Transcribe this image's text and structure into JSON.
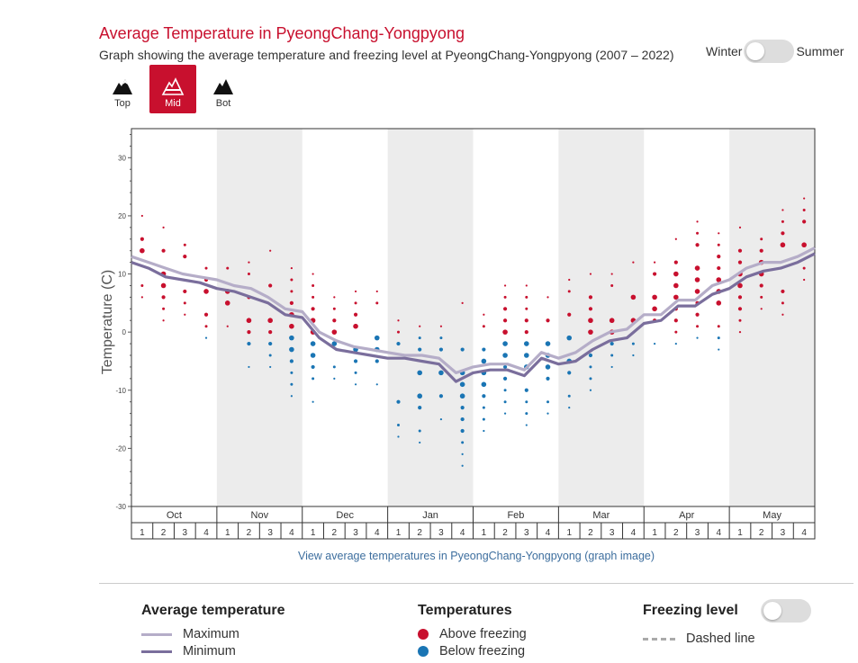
{
  "header": {
    "title": "Average Temperature in PyeongChang-Yongpyong",
    "subtitle": "Graph showing the average temperature and freezing level at PyeongChang-Yongpyong (2007 – 2022)"
  },
  "season_toggle": {
    "left_label": "Winter",
    "right_label": "Summer"
  },
  "mountain_buttons": [
    {
      "label": "Top",
      "active": false
    },
    {
      "label": "Mid",
      "active": true
    },
    {
      "label": "Bot",
      "active": false
    }
  ],
  "link_text": "View average temperatures in PyeongChang-Yongpyong (graph image)",
  "legend": {
    "avg_title": "Average temperature",
    "max_label": "Maximum",
    "min_label": "Minimum",
    "temps_title": "Temperatures",
    "above_label": "Above freezing",
    "below_label": "Below freezing",
    "freeze_title": "Freezing level",
    "dashed_label": "Dashed line"
  },
  "colors": {
    "accent": "#c8102e",
    "above": "#c8102e",
    "below": "#1a75b4",
    "max_line": "#b5adc8",
    "min_line": "#7a6e9c",
    "shade": "#ececec"
  },
  "chart_data": {
    "type": "line",
    "title": "Average Temperature in PyeongChang-Yongpyong",
    "ylabel": "Temperature (C)",
    "xlabel": "",
    "ylim": [
      -30,
      35
    ],
    "yticks": [
      -30,
      -20,
      -10,
      0,
      10,
      20,
      30
    ],
    "months": [
      "Oct",
      "Nov",
      "Dec",
      "Jan",
      "Feb",
      "Mar",
      "Apr",
      "May"
    ],
    "weeks": [
      "1",
      "2",
      "3",
      "4"
    ],
    "series": [
      {
        "name": "Maximum",
        "values": [
          13,
          12,
          11,
          10,
          9.5,
          9,
          8,
          7.5,
          6,
          4,
          3.5,
          0,
          -1.5,
          -2.5,
          -3,
          -3.5,
          -4,
          -4,
          -4.5,
          -7,
          -6,
          -5.5,
          -5.5,
          -6.5,
          -3.5,
          -4.5,
          -3.5,
          -1.5,
          0,
          0.5,
          3,
          3,
          5.5,
          5.5,
          8,
          9,
          11,
          12,
          12,
          13,
          14.5
        ]
      },
      {
        "name": "Minimum",
        "values": [
          12,
          11,
          9.5,
          9,
          8.5,
          7.5,
          7,
          6,
          5,
          3,
          2.5,
          -1,
          -3,
          -3.5,
          -4,
          -4.5,
          -4.5,
          -5,
          -5.5,
          -8.5,
          -7,
          -6.5,
          -6.5,
          -7.5,
          -4.5,
          -5.5,
          -5,
          -3,
          -1.5,
          -1,
          1.5,
          2,
          4.5,
          4.5,
          6.5,
          7.5,
          9.5,
          10.5,
          11,
          12,
          13.5
        ]
      }
    ],
    "point_ranges": [
      [
        6,
        20
      ],
      [
        2,
        18
      ],
      [
        3,
        16
      ],
      [
        -1,
        12
      ],
      [
        1,
        12
      ],
      [
        -6,
        12
      ],
      [
        -6,
        14
      ],
      [
        -11,
        11
      ],
      [
        -12,
        10
      ],
      [
        -8,
        6
      ],
      [
        -9,
        7
      ],
      [
        -9,
        8
      ],
      [
        -18,
        3
      ],
      [
        -19,
        2
      ],
      [
        -15,
        2
      ],
      [
        -23,
        6
      ],
      [
        -17,
        4
      ],
      [
        -14,
        9
      ],
      [
        -16,
        8
      ],
      [
        -14,
        7
      ],
      [
        -13,
        9
      ],
      [
        -10,
        11
      ],
      [
        -6,
        11
      ],
      [
        -4,
        12
      ],
      [
        -2,
        13
      ],
      [
        -2,
        17
      ],
      [
        -1,
        19
      ],
      [
        -3,
        18
      ],
      [
        0,
        18
      ],
      [
        4,
        17
      ],
      [
        3,
        22
      ],
      [
        9,
        23
      ]
    ]
  }
}
